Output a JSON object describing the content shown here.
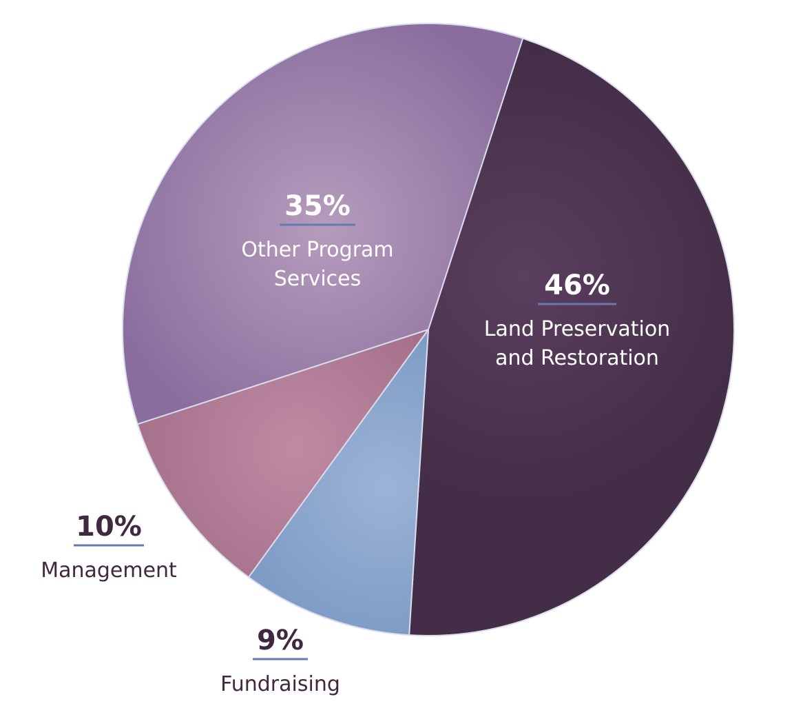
{
  "chart_data": {
    "type": "pie",
    "slices": [
      {
        "key": "land",
        "value": 46,
        "percent_label": "46%",
        "label_lines": [
          "Land Preservation",
          "and Restoration"
        ],
        "color_inner": "#5a3f5e",
        "color_outer": "#442d47",
        "text_color": "#ffffff"
      },
      {
        "key": "fundraising",
        "value": 9,
        "percent_label": "9%",
        "label_lines": [
          "Fundraising"
        ],
        "color_inner": "#9cb3d6",
        "color_outer": "#6e90bd",
        "text_color": "#40293f"
      },
      {
        "key": "management",
        "value": 10,
        "percent_label": "10%",
        "label_lines": [
          "Management"
        ],
        "color_inner": "#c08aa3",
        "color_outer": "#9a6780",
        "text_color": "#40293f"
      },
      {
        "key": "other",
        "value": 35,
        "percent_label": "35%",
        "label_lines": [
          "Other Program",
          "Services"
        ],
        "color_inner": "#b59cbc",
        "color_outer": "#8a6d9e",
        "text_color": "#ffffff"
      }
    ],
    "underline_color": "#6878b0",
    "border_color": "#d8dcec",
    "title": "",
    "legend": "none"
  }
}
